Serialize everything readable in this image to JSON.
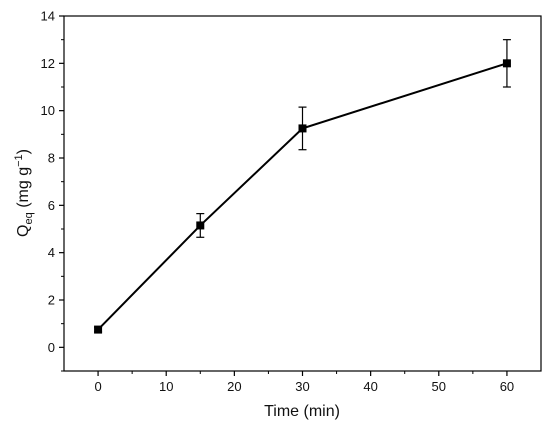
{
  "chart_data": {
    "type": "line",
    "x": [
      0,
      15,
      30,
      60
    ],
    "series": [
      {
        "values": [
          0.75,
          5.15,
          9.25,
          12.0
        ],
        "errors": [
          0.1,
          0.5,
          0.9,
          1.0
        ]
      }
    ],
    "xlabel": "Time (min)",
    "ylabel": {
      "main": "Q",
      "subscript": "eq",
      "unit_open": " (mg g",
      "unit_superscript": "−1",
      "unit_close": ")"
    },
    "xlim": [
      -5,
      65
    ],
    "ylim": [
      -1,
      14
    ],
    "xticks": [
      0,
      10,
      20,
      30,
      40,
      50,
      60
    ],
    "yticks": [
      0,
      2,
      4,
      6,
      8,
      10,
      12,
      14
    ],
    "grid": false,
    "marker": "square",
    "line_color": "#000000"
  }
}
